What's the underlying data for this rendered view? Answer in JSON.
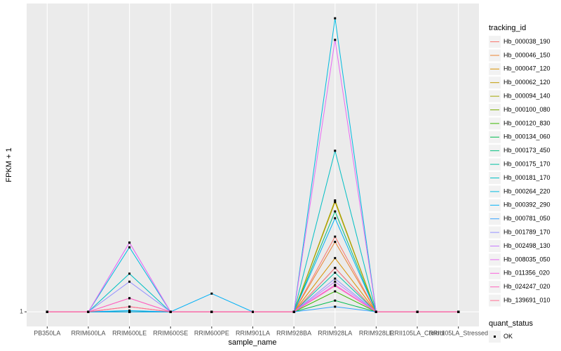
{
  "chart_data": {
    "type": "line",
    "x_label": "sample_name",
    "y_label": "FPKM + 1",
    "categories": [
      "PB350LA",
      "RRIM600LA",
      "RRIM600LE",
      "RRIM600SE",
      "RRIM600PE",
      "RRIM901LA",
      "RRIM928BA",
      "RRIM928LA",
      "RRIM928LE",
      "RRII105LA_Control",
      "RRII105LA_Stressed"
    ],
    "log_y": true,
    "ylim": [
      0.894,
      10.64
    ],
    "yticks": [
      1
    ],
    "grid": true,
    "legend_title": "tracking_id",
    "legend_position": "right",
    "point_legend": {
      "title": "quant_status",
      "labels": [
        "OK"
      ],
      "color": "#000000"
    },
    "series": [
      {
        "name": "Hb_000038_190",
        "color": "#F8766D",
        "values": [
          1,
          1,
          1.04,
          1,
          1,
          1,
          1,
          1.78,
          1,
          1,
          1
        ]
      },
      {
        "name": "Hb_000046_150",
        "color": "#EA8331",
        "values": [
          1,
          1,
          1,
          1,
          1,
          1,
          1,
          1.71,
          1,
          1,
          1
        ]
      },
      {
        "name": "Hb_000047_120",
        "color": "#D89000",
        "values": [
          1,
          1,
          1,
          1,
          1,
          1,
          1,
          1.51,
          1,
          1,
          1
        ]
      },
      {
        "name": "Hb_000062_120",
        "color": "#C09B00",
        "values": [
          1,
          1,
          1,
          1,
          1,
          1,
          1,
          2.32,
          1,
          1,
          1
        ]
      },
      {
        "name": "Hb_000094_140",
        "color": "#A3A500",
        "values": [
          1,
          1,
          1,
          1,
          1,
          1,
          1,
          2.35,
          1,
          1,
          1
        ]
      },
      {
        "name": "Hb_000100_080",
        "color": "#7CAE00",
        "values": [
          1,
          1,
          1,
          1,
          1,
          1,
          1,
          1.4,
          1,
          1,
          1
        ]
      },
      {
        "name": "Hb_000120_830",
        "color": "#39B600",
        "values": [
          1,
          1,
          1,
          1,
          1,
          1,
          1,
          1.17,
          1,
          1,
          1
        ]
      },
      {
        "name": "Hb_000134_060",
        "color": "#00BB4E",
        "values": [
          1,
          1,
          1,
          1,
          1,
          1,
          1,
          1.09,
          1,
          1,
          1
        ]
      },
      {
        "name": "Hb_000173_450",
        "color": "#00BF7D",
        "values": [
          1,
          1,
          1,
          1,
          1,
          1,
          1,
          2.16,
          1,
          1,
          1
        ]
      },
      {
        "name": "Hb_000175_170",
        "color": "#00C1A3",
        "values": [
          1,
          1,
          1,
          1,
          1,
          1,
          1,
          1.35,
          1,
          1,
          1
        ]
      },
      {
        "name": "Hb_000181_170",
        "color": "#00BFC4",
        "values": [
          1,
          1,
          1.34,
          1,
          1,
          1,
          1,
          3.44,
          1,
          1,
          1
        ]
      },
      {
        "name": "Hb_000264_220",
        "color": "#00BAE0",
        "values": [
          1,
          1,
          1.64,
          1,
          1,
          1,
          1,
          9.5,
          1,
          1,
          1
        ]
      },
      {
        "name": "Hb_000392_290",
        "color": "#00B0F6",
        "values": [
          1,
          1,
          1.01,
          1,
          1.15,
          1,
          1,
          2.05,
          1,
          1,
          1
        ]
      },
      {
        "name": "Hb_000781_050",
        "color": "#35A2FF",
        "values": [
          1,
          1,
          1,
          1,
          1,
          1,
          1,
          1.04,
          1,
          1,
          1
        ]
      },
      {
        "name": "Hb_001789_170",
        "color": "#9590FF",
        "values": [
          1,
          1,
          1.26,
          1,
          1,
          1,
          1,
          1.29,
          1,
          1,
          1
        ]
      },
      {
        "name": "Hb_002498_130",
        "color": "#C77CFF",
        "values": [
          1,
          1,
          1.7,
          1,
          1,
          1,
          1,
          1.26,
          1,
          1,
          1
        ]
      },
      {
        "name": "Hb_008035_050",
        "color": "#E76BF3",
        "values": [
          1,
          1,
          1.7,
          1,
          1,
          1,
          1,
          8.05,
          1,
          1,
          1
        ]
      },
      {
        "name": "Hb_011356_020",
        "color": "#FA62DB",
        "values": [
          1,
          1,
          1.11,
          1,
          1,
          1,
          1,
          1.23,
          1,
          1,
          1
        ]
      },
      {
        "name": "Hb_024247_020",
        "color": "#FF62BC",
        "values": [
          1,
          1,
          1.11,
          1,
          1,
          1,
          1,
          1.22,
          1,
          1,
          1
        ]
      },
      {
        "name": "Hb_139691_010",
        "color": "#FF6C91",
        "values": [
          1,
          1,
          1.04,
          1,
          1,
          1,
          1,
          1.4,
          1,
          1,
          1
        ]
      }
    ]
  }
}
